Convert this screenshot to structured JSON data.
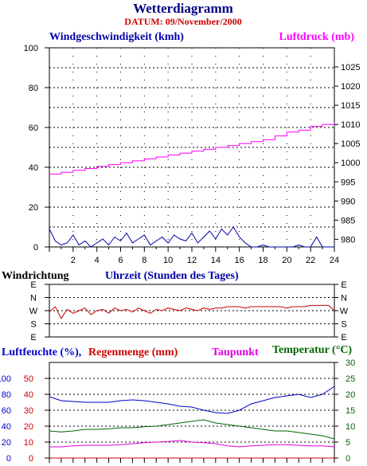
{
  "title": "Wetterdiagramm",
  "datum": "DATUM: 09/November/2000",
  "colors": {
    "wind": "#0000aa",
    "pressure": "#ff00ff",
    "direction": "#cc0000",
    "humidity": "#0000cc",
    "rain": "#cc0000",
    "dewpoint": "#dd00dd",
    "temperature": "#006600",
    "grid": "#000000"
  },
  "chart_data": [
    {
      "type": "line",
      "name": "wind-pressure",
      "left_label": "Windgeschwindigkeit (kmh)",
      "right_label": "Luftdruck (mb)",
      "xlim": [
        0,
        24
      ],
      "x_ticks": [
        2,
        4,
        6,
        8,
        10,
        12,
        14,
        16,
        18,
        20,
        22,
        24
      ],
      "ylim_left": [
        0,
        100
      ],
      "y_ticks_left": [
        0,
        20,
        40,
        60,
        80,
        100
      ],
      "ylim_right": [
        978,
        1030
      ],
      "y_ticks_right": [
        980,
        985,
        990,
        995,
        1000,
        1005,
        1010,
        1015,
        1020,
        1025
      ],
      "grid": true,
      "series": [
        {
          "key": "pressure",
          "x": [
            0,
            1,
            2,
            3,
            4,
            5,
            6,
            7,
            8,
            9,
            10,
            11,
            12,
            13,
            14,
            15,
            16,
            17,
            18,
            19,
            20,
            21,
            22,
            23,
            24
          ],
          "y": [
            997,
            997.5,
            998,
            998.5,
            999,
            999.5,
            1000,
            1000.5,
            1001,
            1001.5,
            1002,
            1002.5,
            1003,
            1003.5,
            1004,
            1004.5,
            1005,
            1005.5,
            1006,
            1007,
            1008,
            1008.5,
            1009.5,
            1010,
            1010.5
          ]
        },
        {
          "key": "wind",
          "x": [
            0,
            0.5,
            1,
            1.5,
            2,
            2.5,
            3,
            3.5,
            4,
            4.5,
            5,
            5.5,
            6,
            6.5,
            7,
            7.5,
            8,
            8.5,
            9,
            9.5,
            10,
            10.5,
            11,
            11.5,
            12,
            12.5,
            13,
            13.5,
            14,
            14.5,
            15,
            15.5,
            16,
            16.5,
            17,
            17.5,
            18,
            18.5,
            19,
            19.5,
            20,
            20.5,
            21,
            21.5,
            22,
            22.5,
            23,
            23.5,
            24
          ],
          "y": [
            9,
            3,
            1,
            2,
            6,
            1,
            3,
            0,
            2,
            4,
            1,
            5,
            3,
            7,
            2,
            4,
            6,
            1,
            3,
            5,
            2,
            6,
            4,
            3,
            7,
            2,
            5,
            8,
            4,
            9,
            6,
            10,
            5,
            2,
            0,
            0,
            1,
            0,
            0,
            0,
            0,
            0,
            1,
            0,
            0,
            5,
            0,
            0,
            0
          ]
        }
      ]
    },
    {
      "type": "line",
      "name": "wind-direction",
      "left_label": "Windrichtung",
      "center_label": "Uhrzeit (Stunden des Tages)",
      "categories": [
        "E",
        "N",
        "W",
        "S",
        "E"
      ],
      "xlim": [
        0,
        24
      ],
      "series": [
        {
          "key": "direction",
          "x": [
            0,
            0.5,
            1,
            1.5,
            2,
            2.5,
            3,
            3.5,
            4,
            4.5,
            5,
            5.5,
            6,
            6.5,
            7,
            7.5,
            8,
            8.5,
            9,
            9.5,
            10,
            10.5,
            11,
            11.5,
            12,
            12.5,
            13,
            13.5,
            14,
            14.5,
            15,
            15.5,
            16,
            16.5,
            17,
            17.5,
            18,
            18.5,
            19,
            19.5,
            20,
            20.5,
            21,
            21.5,
            22,
            22.5,
            23,
            23.5,
            24
          ],
          "y": [
            2.1,
            1.7,
            2.6,
            1.9,
            2.2,
            2.0,
            1.8,
            2.3,
            2.0,
            1.9,
            2.2,
            1.8,
            2.0,
            1.9,
            2.1,
            1.8,
            2.0,
            2.2,
            1.9,
            2.0,
            1.8,
            1.9,
            2.0,
            1.8,
            1.9,
            2.0,
            1.8,
            1.9,
            1.8,
            1.8,
            1.7,
            1.7,
            1.7,
            1.8,
            1.7,
            1.7,
            1.7,
            1.7,
            1.7,
            1.7,
            1.8,
            1.7,
            1.7,
            1.7,
            1.6,
            1.6,
            1.6,
            1.6,
            2.0
          ]
        }
      ]
    },
    {
      "type": "line",
      "name": "humidity-rain-dewpoint-temperature",
      "labels": {
        "humidity": "Luftfeuchte (%),",
        "rain": "Regenmenge (mm)",
        "dewpoint": "Taupunkt",
        "temperature": "Temperatur (°C)"
      },
      "humidity_axis": {
        "lim": [
          0,
          120
        ],
        "ticks": [
          0,
          20,
          40,
          60,
          80,
          100
        ]
      },
      "rain_axis": {
        "lim": [
          0,
          60
        ],
        "ticks": [
          0,
          10,
          20,
          30,
          40,
          50
        ]
      },
      "temperature_axis": {
        "lim": [
          0,
          30
        ],
        "ticks": [
          0,
          5,
          10,
          15,
          20,
          25,
          30
        ]
      },
      "xlim": [
        0,
        24
      ],
      "grid": true,
      "series": [
        {
          "key": "humidity",
          "axis": "humidity",
          "x": [
            0,
            1,
            2,
            3,
            4,
            5,
            6,
            7,
            8,
            9,
            10,
            11,
            12,
            13,
            14,
            15,
            16,
            17,
            18,
            19,
            20,
            21,
            22,
            23,
            24
          ],
          "y": [
            77,
            72,
            71,
            70,
            70,
            70,
            72,
            73,
            72,
            70,
            68,
            65,
            64,
            60,
            57,
            56,
            60,
            68,
            72,
            76,
            78,
            80,
            76,
            80,
            90
          ]
        },
        {
          "key": "temperature",
          "axis": "temperature",
          "x": [
            0,
            1,
            2,
            3,
            4,
            5,
            6,
            7,
            8,
            9,
            10,
            11,
            12,
            13,
            14,
            15,
            16,
            17,
            18,
            19,
            20,
            21,
            22,
            23,
            24
          ],
          "y": [
            8.5,
            8.2,
            8.5,
            9.0,
            9.0,
            9.2,
            9.5,
            9.5,
            9.8,
            10.0,
            10.5,
            11.0,
            11.5,
            12.0,
            11.0,
            10.5,
            10.0,
            9.5,
            9.0,
            8.5,
            8.5,
            8.0,
            7.5,
            7.0,
            6.0
          ]
        },
        {
          "key": "dewpoint",
          "axis": "temperature",
          "x": [
            0,
            1,
            2,
            3,
            4,
            5,
            6,
            7,
            8,
            9,
            10,
            11,
            12,
            13,
            14,
            15,
            16,
            17,
            18,
            19,
            20,
            21,
            22,
            23,
            24
          ],
          "y": [
            3.5,
            3.5,
            3.8,
            4.0,
            4.0,
            4.0,
            4.2,
            4.5,
            4.8,
            5.0,
            5.2,
            5.5,
            5.0,
            4.8,
            4.5,
            3.8,
            3.5,
            3.8,
            4.0,
            4.2,
            4.2,
            4.0,
            3.8,
            3.8,
            3.5
          ]
        },
        {
          "key": "rain",
          "axis": "rain",
          "x": [
            0,
            24
          ],
          "y": [
            0,
            0
          ]
        }
      ]
    }
  ]
}
